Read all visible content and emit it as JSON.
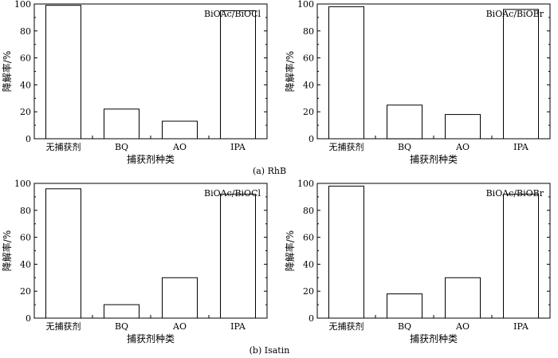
{
  "captions": [
    "(a)  RhB",
    "(b)  Isatin"
  ],
  "chart_data": [
    {
      "type": "bar",
      "annotation": "BiOAc/BiOCl",
      "categories": [
        "无捕获剂",
        "BQ",
        "AO",
        "IPA"
      ],
      "values": [
        99,
        22,
        13,
        95
      ],
      "xlabel": "捕获剂种类",
      "ylabel": "降解率/%",
      "ylim": [
        0,
        100
      ],
      "yticks": [
        0,
        20,
        40,
        60,
        80,
        100
      ],
      "grid": false
    },
    {
      "type": "bar",
      "annotation": "BiOAc/BiOBr",
      "categories": [
        "无捕获剂",
        "BQ",
        "AO",
        "IPA"
      ],
      "values": [
        98,
        25,
        18,
        96
      ],
      "xlabel": "捕获剂种类",
      "ylabel": "降解率/%",
      "ylim": [
        0,
        100
      ],
      "yticks": [
        0,
        20,
        40,
        60,
        80,
        100
      ],
      "grid": false
    },
    {
      "type": "bar",
      "annotation": "BiOAc/BiOCl",
      "categories": [
        "无捕获剂",
        "BQ",
        "AO",
        "IPA"
      ],
      "values": [
        96,
        10,
        30,
        92
      ],
      "xlabel": "捕获剂种类",
      "ylabel": "降解率/%",
      "ylim": [
        0,
        100
      ],
      "yticks": [
        0,
        20,
        40,
        60,
        80,
        100
      ],
      "grid": false
    },
    {
      "type": "bar",
      "annotation": "BiOAc/BiOBr",
      "categories": [
        "无捕获剂",
        "BQ",
        "AO",
        "IPA"
      ],
      "values": [
        98,
        18,
        30,
        92
      ],
      "xlabel": "捕获剂种类",
      "ylabel": "降解率/%",
      "ylim": [
        0,
        100
      ],
      "yticks": [
        0,
        20,
        40,
        60,
        80,
        100
      ],
      "grid": false
    }
  ]
}
